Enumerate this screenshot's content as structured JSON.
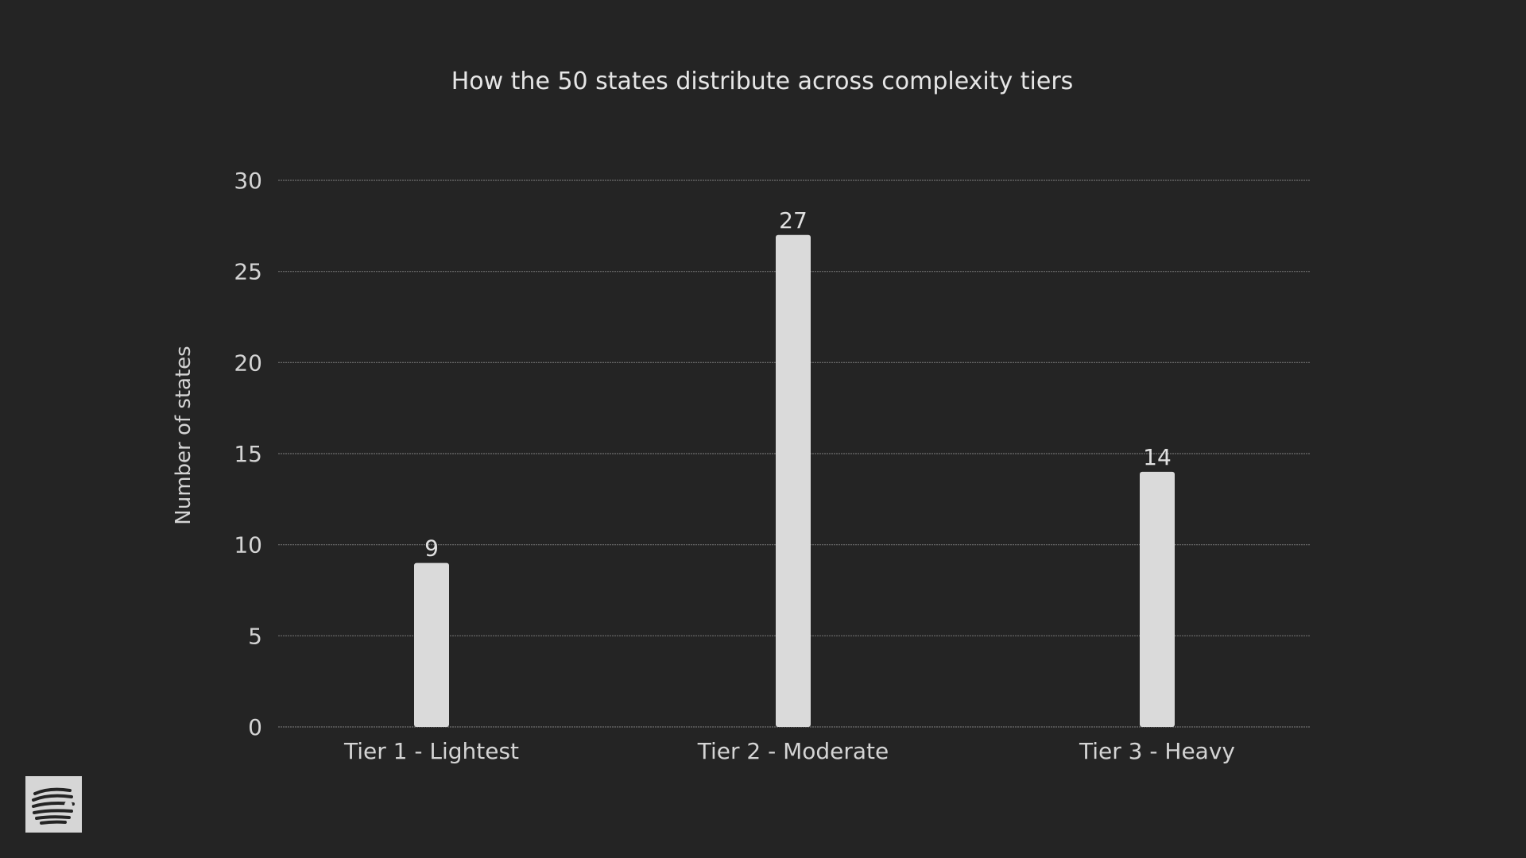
{
  "chart_data": {
    "type": "bar",
    "title": "How the 50 states distribute across complexity tiers",
    "xlabel": "",
    "ylabel": "Number of states",
    "categories": [
      "Tier 1 - Lightest",
      "Tier 2 - Moderate",
      "Tier 3 - Heavy"
    ],
    "values": [
      9,
      27,
      14
    ],
    "data_labels": [
      "9",
      "27",
      "14"
    ],
    "ylim": [
      0,
      30
    ],
    "yticks": [
      0,
      5,
      10,
      15,
      20,
      25,
      30
    ],
    "grid": true,
    "legend": "none"
  },
  "colors": {
    "background": "#242424",
    "bar": "#dadada",
    "gridline": "#6e6e6e",
    "text": "#e0e0e0"
  },
  "logo": {
    "icon": "radiating-lines-logo-icon"
  }
}
